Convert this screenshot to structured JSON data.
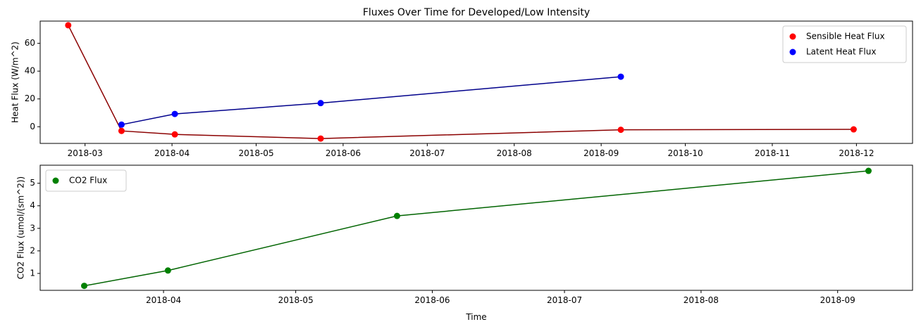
{
  "chart_data": [
    {
      "type": "line",
      "title": "Fluxes Over Time for Developed/Low Intensity",
      "xlabel": "",
      "ylabel": "Heat Flux (W/m^2)",
      "xlim": [
        "2018-02-13",
        "2018-12-21"
      ],
      "ylim": [
        -12,
        76
      ],
      "x_ticks": [
        "2018-03",
        "2018-04",
        "2018-05",
        "2018-06",
        "2018-07",
        "2018-08",
        "2018-09",
        "2018-10",
        "2018-11",
        "2018-12"
      ],
      "y_ticks": [
        0,
        20,
        40,
        60
      ],
      "legend_position": "upper right",
      "series": [
        {
          "name": "Sensible Heat Flux",
          "marker_color": "#ff0000",
          "line_color": "#8b0000",
          "points": [
            {
              "x": "2018-02-23",
              "y": 73
            },
            {
              "x": "2018-03-14",
              "y": -3
            },
            {
              "x": "2018-04-02",
              "y": -5.5
            },
            {
              "x": "2018-05-24",
              "y": -8.5
            },
            {
              "x": "2018-09-08",
              "y": -2.2
            },
            {
              "x": "2018-11-30",
              "y": -1.9
            }
          ]
        },
        {
          "name": "Latent Heat Flux",
          "marker_color": "#0000ff",
          "line_color": "#00008b",
          "points": [
            {
              "x": "2018-03-14",
              "y": 1.5
            },
            {
              "x": "2018-04-02",
              "y": 9.2
            },
            {
              "x": "2018-05-24",
              "y": 17
            },
            {
              "x": "2018-09-08",
              "y": 36
            }
          ]
        }
      ]
    },
    {
      "type": "line",
      "title": "",
      "xlabel": "Time",
      "ylabel": "CO2 Flux (umol/(sm^2))",
      "xlim": [
        "2018-03-04",
        "2018-09-18"
      ],
      "ylim": [
        0.25,
        5.8
      ],
      "x_ticks": [
        "2018-04",
        "2018-05",
        "2018-06",
        "2018-07",
        "2018-08",
        "2018-09"
      ],
      "y_ticks": [
        1,
        2,
        3,
        4,
        5
      ],
      "legend_position": "upper left",
      "series": [
        {
          "name": "CO2 Flux",
          "marker_color": "#008000",
          "line_color": "#006400",
          "points": [
            {
              "x": "2018-03-14",
              "y": 0.45
            },
            {
              "x": "2018-04-02",
              "y": 1.13
            },
            {
              "x": "2018-05-24",
              "y": 3.55
            },
            {
              "x": "2018-09-08",
              "y": 5.55
            }
          ]
        }
      ]
    }
  ]
}
